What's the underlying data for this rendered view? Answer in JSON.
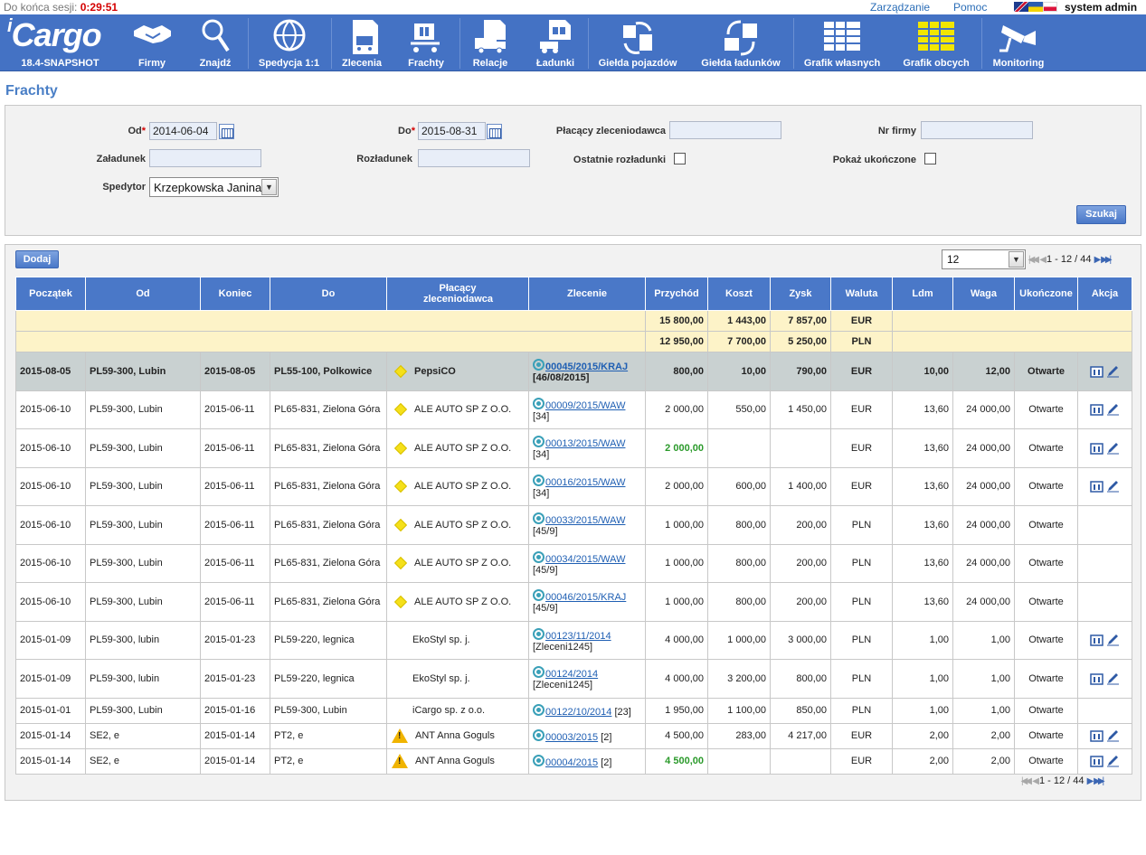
{
  "topbar": {
    "session_label": "Do końca sesji:",
    "session_timer": "0:29:51",
    "links": [
      "Zarządzanie",
      "Pomoc"
    ],
    "user": "system admin"
  },
  "menu": {
    "logo_text": "Cargo",
    "version": "18.4-SNAPSHOT",
    "items": [
      {
        "label": "Firmy",
        "icon": "handshake-icon"
      },
      {
        "label": "Znajdź",
        "icon": "magnifier-icon"
      },
      {
        "label": "Spedycja 1:1",
        "icon": "globe-icon"
      },
      {
        "label": "Zlecenia",
        "icon": "order-cart-icon"
      },
      {
        "label": "Frachty",
        "icon": "freight-cart-icon"
      },
      {
        "label": "Relacje",
        "icon": "truck-relation-icon"
      },
      {
        "label": "Ładunki",
        "icon": "forklift-cargo-icon"
      },
      {
        "label": "Giełda pojazdów",
        "icon": "vehicle-exchange-icon"
      },
      {
        "label": "Giełda ładunków",
        "icon": "cargo-exchange-icon"
      },
      {
        "label": "Grafik własnych",
        "icon": "own-schedule-icon"
      },
      {
        "label": "Grafik obcych",
        "icon": "foreign-schedule-icon"
      },
      {
        "label": "Monitoring",
        "icon": "camera-icon"
      }
    ]
  },
  "page_title": "Frachty",
  "filters": {
    "od_label": "Od",
    "od_value": "2014-06-04",
    "do_label": "Do",
    "do_value": "2015-08-31",
    "payer_label": "Płacący zleceniodawca",
    "payer_value": "",
    "nr_firmy_label": "Nr firmy",
    "nr_firmy_value": "",
    "zaladunek_label": "Załadunek",
    "zaladunek_value": "",
    "rozladunek_label": "Rozładunek",
    "rozladunek_value": "",
    "ostatnie_label": "Ostatnie rozładunki",
    "pokaz_label": "Pokaż ukończone",
    "spedytor_label": "Spedytor",
    "spedytor_value": "Krzepkowska Janina",
    "search_button": "Szukaj"
  },
  "list": {
    "add_button": "Dodaj",
    "page_size": "12",
    "pager_text": "1 - 12 / 44",
    "pager_text_bottom": "1 - 12 / 44",
    "columns": [
      "Początek",
      "Od",
      "Koniec",
      "Do",
      "Płacący zleceniodawca",
      "Zlecenie",
      "Przychód",
      "Koszt",
      "Zysk",
      "Waluta",
      "Ldm",
      "Waga",
      "Ukończone",
      "Akcja"
    ],
    "summary": [
      {
        "przychod": "15 800,00",
        "koszt": "1 443,00",
        "zysk": "7 857,00",
        "waluta": "EUR"
      },
      {
        "przychod": "12 950,00",
        "koszt": "7 700,00",
        "zysk": "5 250,00",
        "waluta": "PLN"
      }
    ],
    "rows": [
      {
        "start": "2015-08-05",
        "from": "PL59-300, Lubin",
        "end": "2015-08-05",
        "to": "PL55-100, Polkowice",
        "payer": "PepsiCO",
        "order": "00045/2015/KRAJ",
        "order_ref": "[46/08/2015]",
        "income": "800,00",
        "cost": "10,00",
        "profit": "790,00",
        "currency": "EUR",
        "ldm": "10,00",
        "weight": "12,00",
        "status": "Otwarte"
      },
      {
        "start": "2015-06-10",
        "from": "PL59-300, Lubin",
        "end": "2015-06-11",
        "to": "PL65-831, Zielona Góra",
        "payer": "ALE AUTO SP Z O.O.",
        "order": "00009/2015/WAW",
        "order_ref": "[34]",
        "income": "2 000,00",
        "cost": "550,00",
        "profit": "1 450,00",
        "currency": "EUR",
        "ldm": "13,60",
        "weight": "24 000,00",
        "status": "Otwarte"
      },
      {
        "start": "2015-06-10",
        "from": "PL59-300, Lubin",
        "end": "2015-06-11",
        "to": "PL65-831, Zielona Góra",
        "payer": "ALE AUTO SP Z O.O.",
        "order": "00013/2015/WAW",
        "order_ref": "[34]",
        "income": "2 000,00",
        "cost": "",
        "profit": "",
        "currency": "EUR",
        "ldm": "13,60",
        "weight": "24 000,00",
        "status": "Otwarte"
      },
      {
        "start": "2015-06-10",
        "from": "PL59-300, Lubin",
        "end": "2015-06-11",
        "to": "PL65-831, Zielona Góra",
        "payer": "ALE AUTO SP Z O.O.",
        "order": "00016/2015/WAW",
        "order_ref": "[34]",
        "income": "2 000,00",
        "cost": "600,00",
        "profit": "1 400,00",
        "currency": "EUR",
        "ldm": "13,60",
        "weight": "24 000,00",
        "status": "Otwarte"
      },
      {
        "start": "2015-06-10",
        "from": "PL59-300, Lubin",
        "end": "2015-06-11",
        "to": "PL65-831, Zielona Góra",
        "payer": "ALE AUTO SP Z O.O.",
        "order": "00033/2015/WAW",
        "order_ref": "[45/9]",
        "income": "1 000,00",
        "cost": "800,00",
        "profit": "200,00",
        "currency": "PLN",
        "ldm": "13,60",
        "weight": "24 000,00",
        "status": "Otwarte"
      },
      {
        "start": "2015-06-10",
        "from": "PL59-300, Lubin",
        "end": "2015-06-11",
        "to": "PL65-831, Zielona Góra",
        "payer": "ALE AUTO SP Z O.O.",
        "order": "00034/2015/WAW",
        "order_ref": "[45/9]",
        "income": "1 000,00",
        "cost": "800,00",
        "profit": "200,00",
        "currency": "PLN",
        "ldm": "13,60",
        "weight": "24 000,00",
        "status": "Otwarte"
      },
      {
        "start": "2015-06-10",
        "from": "PL59-300, Lubin",
        "end": "2015-06-11",
        "to": "PL65-831, Zielona Góra",
        "payer": "ALE AUTO SP Z O.O.",
        "order": "00046/2015/KRAJ",
        "order_ref": "[45/9]",
        "income": "1 000,00",
        "cost": "800,00",
        "profit": "200,00",
        "currency": "PLN",
        "ldm": "13,60",
        "weight": "24 000,00",
        "status": "Otwarte"
      },
      {
        "start": "2015-01-09",
        "from": "PL59-300, lubin",
        "end": "2015-01-23",
        "to": "PL59-220, legnica",
        "payer": "EkoStyl sp. j.",
        "order": "00123/11/2014",
        "order_ref": "[Zleceni1245]",
        "income": "4 000,00",
        "cost": "1 000,00",
        "profit": "3 000,00",
        "currency": "PLN",
        "ldm": "1,00",
        "weight": "1,00",
        "status": "Otwarte"
      },
      {
        "start": "2015-01-09",
        "from": "PL59-300, lubin",
        "end": "2015-01-23",
        "to": "PL59-220, legnica",
        "payer": "EkoStyl sp. j.",
        "order": "00124/2014",
        "order_ref": "[Zleceni1245]",
        "income": "4 000,00",
        "cost": "3 200,00",
        "profit": "800,00",
        "currency": "PLN",
        "ldm": "1,00",
        "weight": "1,00",
        "status": "Otwarte"
      },
      {
        "start": "2015-01-01",
        "from": "PL59-300, Lubin",
        "end": "2015-01-16",
        "to": "PL59-300, Lubin",
        "payer": "iCargo sp. z o.o.",
        "order": "00122/10/2014",
        "order_ref": "[23]",
        "income": "1 950,00",
        "cost": "1 100,00",
        "profit": "850,00",
        "currency": "PLN",
        "ldm": "1,00",
        "weight": "1,00",
        "status": "Otwarte"
      },
      {
        "start": "2015-01-14",
        "from": "SE2, e",
        "end": "2015-01-14",
        "to": "PT2, e",
        "payer": "ANT Anna Goguls",
        "order": "00003/2015",
        "order_ref": "[2]",
        "income": "4 500,00",
        "cost": "283,00",
        "profit": "4 217,00",
        "currency": "EUR",
        "ldm": "2,00",
        "weight": "2,00",
        "status": "Otwarte"
      },
      {
        "start": "2015-01-14",
        "from": "SE2, e",
        "end": "2015-01-14",
        "to": "PT2, e",
        "payer": "ANT Anna Goguls",
        "order": "00004/2015",
        "order_ref": "[2]",
        "income": "4 500,00",
        "cost": "",
        "profit": "",
        "currency": "EUR",
        "ldm": "2,00",
        "weight": "2,00",
        "status": "Otwarte"
      }
    ]
  },
  "colors": {
    "menu_bg": "#4472c4",
    "header_bg": "#4a78c8",
    "summary_bg": "#fdf3c8",
    "highlight_row": "#c9d1d1",
    "timer": "#d40000",
    "green_value": "#2b9a2b"
  }
}
